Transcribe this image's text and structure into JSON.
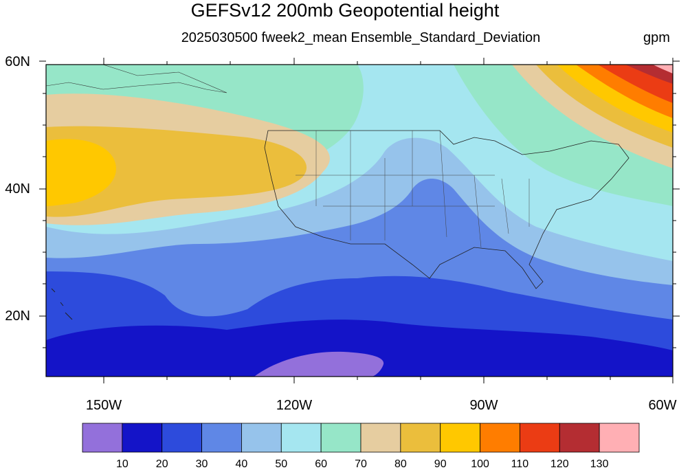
{
  "title": "GEFSv12 200mb Geopotential height",
  "subtitle": "2025030500 fweek2_mean Ensemble_Standard_Deviation",
  "units": "gpm",
  "lat_labels": [
    "60N",
    "40N",
    "20N"
  ],
  "lon_labels": [
    "150W",
    "120W",
    "90W",
    "60W"
  ],
  "colorbar": {
    "colors": [
      "#9370DB",
      "#1414C8",
      "#2D4BDC",
      "#5F87E6",
      "#96C3EB",
      "#A5E6F0",
      "#96E6C8",
      "#E6CDA0",
      "#EBBE3C",
      "#FFC800",
      "#FF7D00",
      "#EB3C14",
      "#B42D32",
      "#FFAFB4"
    ],
    "labels": [
      "10",
      "20",
      "30",
      "40",
      "50",
      "60",
      "70",
      "80",
      "90",
      "100",
      "110",
      "120",
      "130"
    ]
  }
}
